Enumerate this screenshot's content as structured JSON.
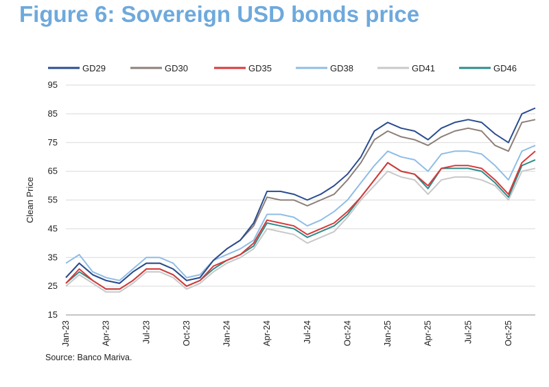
{
  "figure": {
    "title": "Figure 6: Sovereign USD bonds price",
    "source": "Source: Banco Mariva."
  },
  "chart_data": {
    "type": "line",
    "ylabel": "Clean Price",
    "ylim": [
      15,
      95
    ],
    "yticks": [
      15,
      25,
      35,
      45,
      55,
      65,
      75,
      85,
      95
    ],
    "grid": true,
    "legend_position": "top",
    "x_range": [
      "Jan-23",
      "Dec-25"
    ],
    "x_tick_labels": [
      "Jan-23",
      "Apr-23",
      "Jul-23",
      "Oct-23",
      "Jan-24",
      "Apr-24",
      "Jul-24",
      "Oct-24",
      "Jan-25",
      "Apr-25",
      "Jul-25",
      "Oct-25"
    ],
    "x": [
      "Jan-23",
      "Feb-23",
      "Mar-23",
      "Apr-23",
      "May-23",
      "Jun-23",
      "Jul-23",
      "Aug-23",
      "Sep-23",
      "Oct-23",
      "Nov-23",
      "Dec-23",
      "Jan-24",
      "Feb-24",
      "Mar-24",
      "Apr-24",
      "May-24",
      "Jun-24",
      "Jul-24",
      "Aug-24",
      "Sep-24",
      "Oct-24",
      "Nov-24",
      "Dec-24",
      "Jan-25",
      "Feb-25",
      "Mar-25",
      "Apr-25",
      "May-25",
      "Jun-25",
      "Jul-25",
      "Aug-25",
      "Sep-25",
      "Oct-25",
      "Nov-25",
      "Dec-25"
    ],
    "series": [
      {
        "name": "GD29",
        "color": "#2a4c8f",
        "values": [
          28,
          33,
          29,
          27,
          26,
          30,
          33,
          33,
          31,
          27,
          28,
          34,
          38,
          41,
          47,
          58,
          58,
          57,
          55,
          57,
          60,
          64,
          70,
          79,
          82,
          80,
          79,
          76,
          80,
          82,
          83,
          82,
          78,
          75,
          85,
          87
        ]
      },
      {
        "name": "GD30",
        "color": "#8c7f78",
        "values": [
          28,
          33,
          29,
          27,
          26,
          30,
          33,
          33,
          31,
          27,
          28,
          34,
          38,
          41,
          46,
          56,
          55,
          55,
          53,
          55,
          57,
          62,
          68,
          76,
          79,
          77,
          76,
          74,
          77,
          79,
          80,
          79,
          74,
          72,
          82,
          83
        ]
      },
      {
        "name": "GD35",
        "color": "#d93838",
        "values": [
          26,
          31,
          27,
          24,
          24,
          27,
          31,
          31,
          29,
          25,
          27,
          32,
          34,
          36,
          40,
          48,
          47,
          46,
          43,
          45,
          47,
          51,
          56,
          62,
          68,
          65,
          64,
          60,
          66,
          67,
          67,
          66,
          62,
          57,
          68,
          72
        ]
      },
      {
        "name": "GD38",
        "color": "#8ebde6",
        "values": [
          33,
          36,
          30,
          28,
          27,
          31,
          35,
          35,
          33,
          28,
          29,
          34,
          36,
          38,
          41,
          50,
          50,
          49,
          46,
          48,
          51,
          55,
          61,
          67,
          72,
          70,
          69,
          65,
          71,
          72,
          72,
          71,
          67,
          62,
          72,
          74
        ]
      },
      {
        "name": "GD41",
        "color": "#c8c8c8",
        "values": [
          25,
          29,
          26,
          23,
          23,
          26,
          30,
          30,
          28,
          24,
          26,
          30,
          33,
          35,
          38,
          45,
          44,
          43,
          40,
          42,
          44,
          49,
          55,
          60,
          65,
          63,
          62,
          57,
          62,
          63,
          63,
          62,
          60,
          55,
          65,
          66
        ]
      },
      {
        "name": "GD46",
        "color": "#2c8c8a",
        "values": [
          26,
          30,
          27,
          24,
          24,
          27,
          31,
          31,
          29,
          25,
          27,
          31,
          34,
          36,
          39,
          47,
          46,
          45,
          42,
          44,
          46,
          50,
          56,
          62,
          68,
          65,
          64,
          59,
          66,
          66,
          66,
          65,
          61,
          56,
          67,
          69
        ]
      }
    ]
  }
}
